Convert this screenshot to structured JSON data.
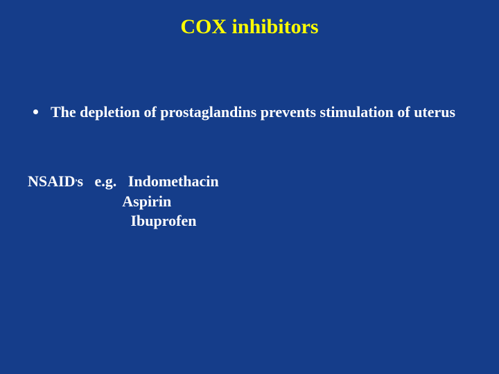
{
  "background_color": "#153d8a",
  "title": {
    "text": "COX inhibitors",
    "color": "#ffff00",
    "fontsize": 30,
    "font_weight": "bold",
    "font_family": "Times New Roman"
  },
  "bullet": {
    "text": "The depletion of prostaglandins prevents stimulation of uterus",
    "color": "#ffffff",
    "fontsize": 22,
    "font_weight": "bold",
    "marker_color": "#ffffff"
  },
  "nsaid": {
    "prefix": "NSAID",
    "sup": ",",
    "suffix": "s   e.g.   ",
    "drug1": "Indomethacin",
    "line2": "                         Aspirin",
    "line3": "                           Ibuprofen",
    "color": "#ffffff",
    "fontsize": 22,
    "font_weight": "bold"
  }
}
